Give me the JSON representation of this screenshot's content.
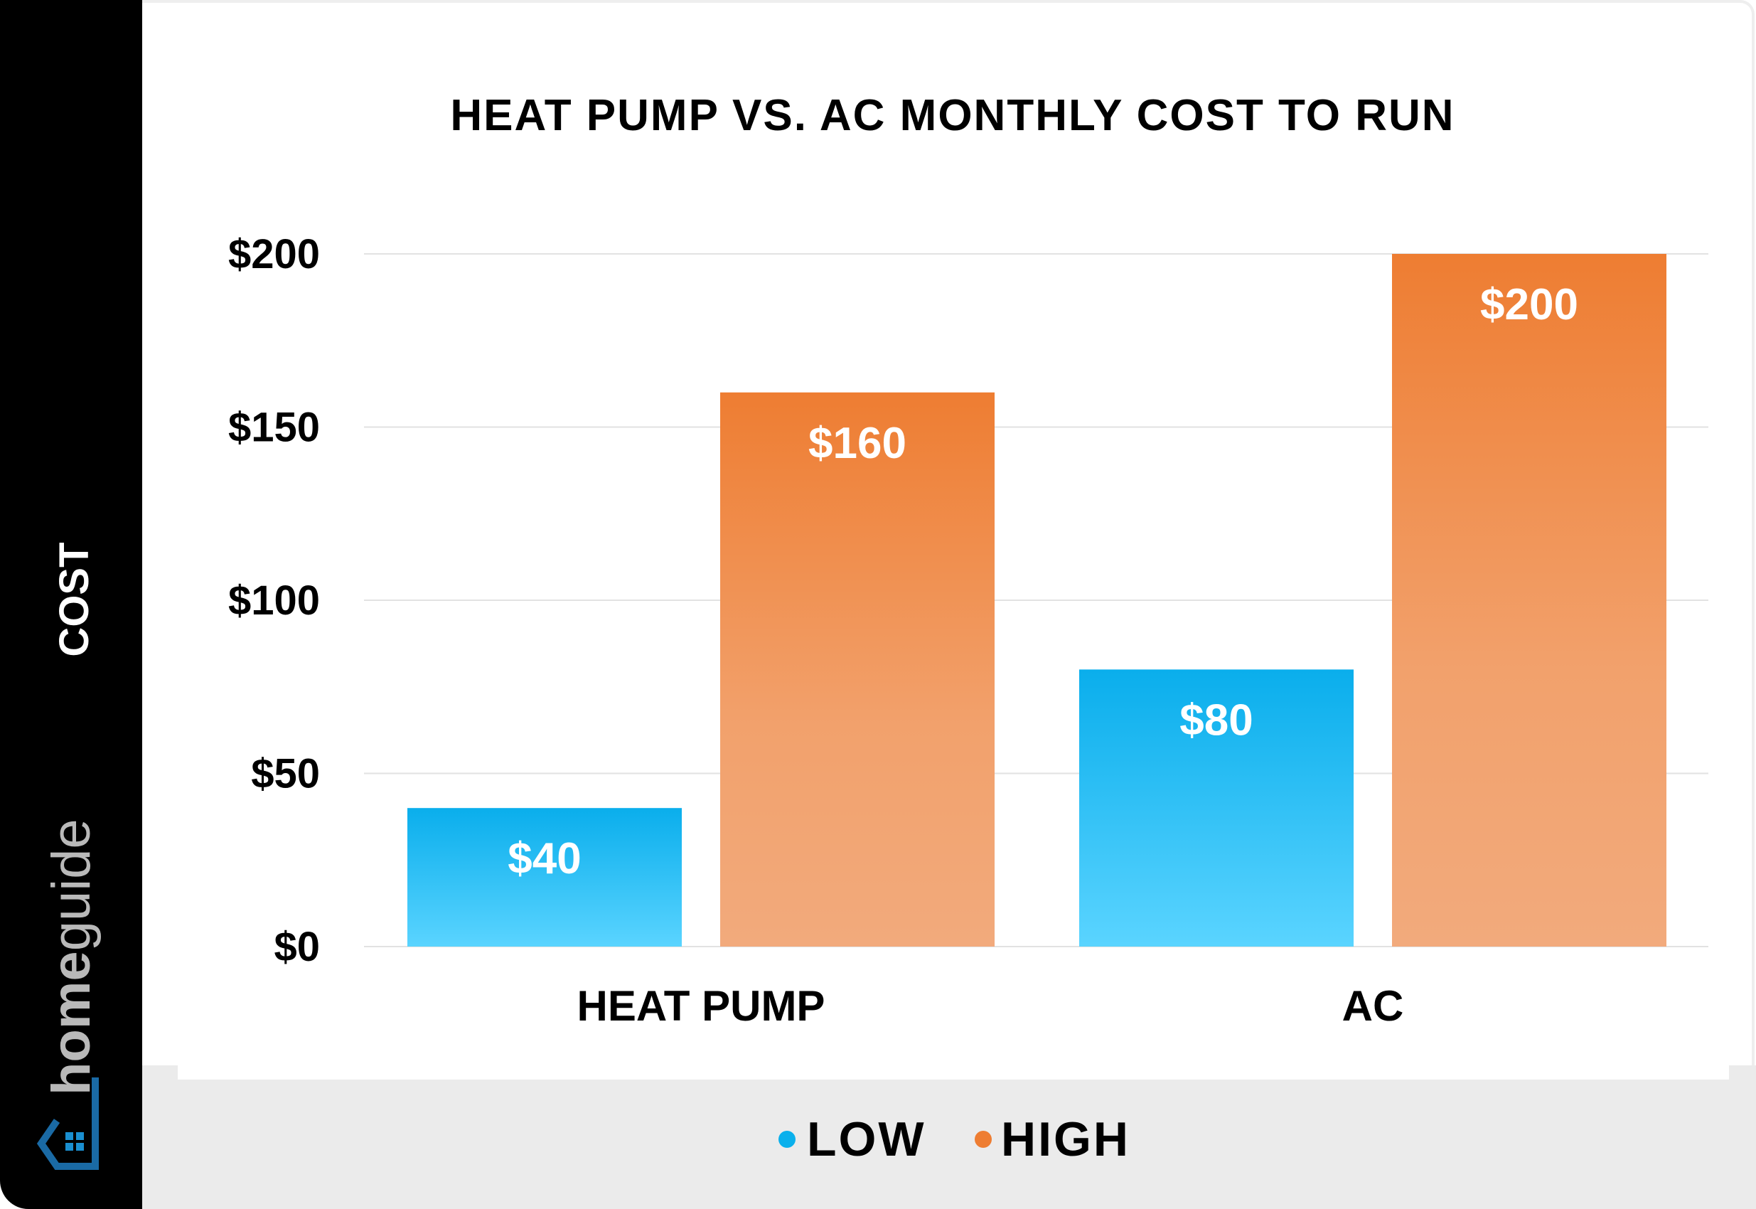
{
  "chart_data": {
    "type": "bar",
    "title": "HEAT PUMP VS. AC MONTHLY COST TO RUN",
    "ylabel": "COST",
    "xlabel": "",
    "categories": [
      "HEAT PUMP",
      "AC"
    ],
    "series": [
      {
        "name": "LOW",
        "values": [
          40,
          80
        ],
        "labels": [
          "$40",
          "$80"
        ],
        "color": "#0ab0ec"
      },
      {
        "name": "HIGH",
        "values": [
          160,
          200
        ],
        "labels": [
          "$160",
          "$200"
        ],
        "color": "#ee7d32"
      }
    ],
    "ylim": [
      0,
      200
    ],
    "yticks": [
      0,
      50,
      100,
      150,
      200
    ],
    "ytick_labels": [
      "$0",
      "$50",
      "$100",
      "$150",
      "$200"
    ],
    "grid": true,
    "legend": "bottom"
  },
  "branding": {
    "logo_text": "homeguide",
    "logo_icon": "house-icon"
  }
}
